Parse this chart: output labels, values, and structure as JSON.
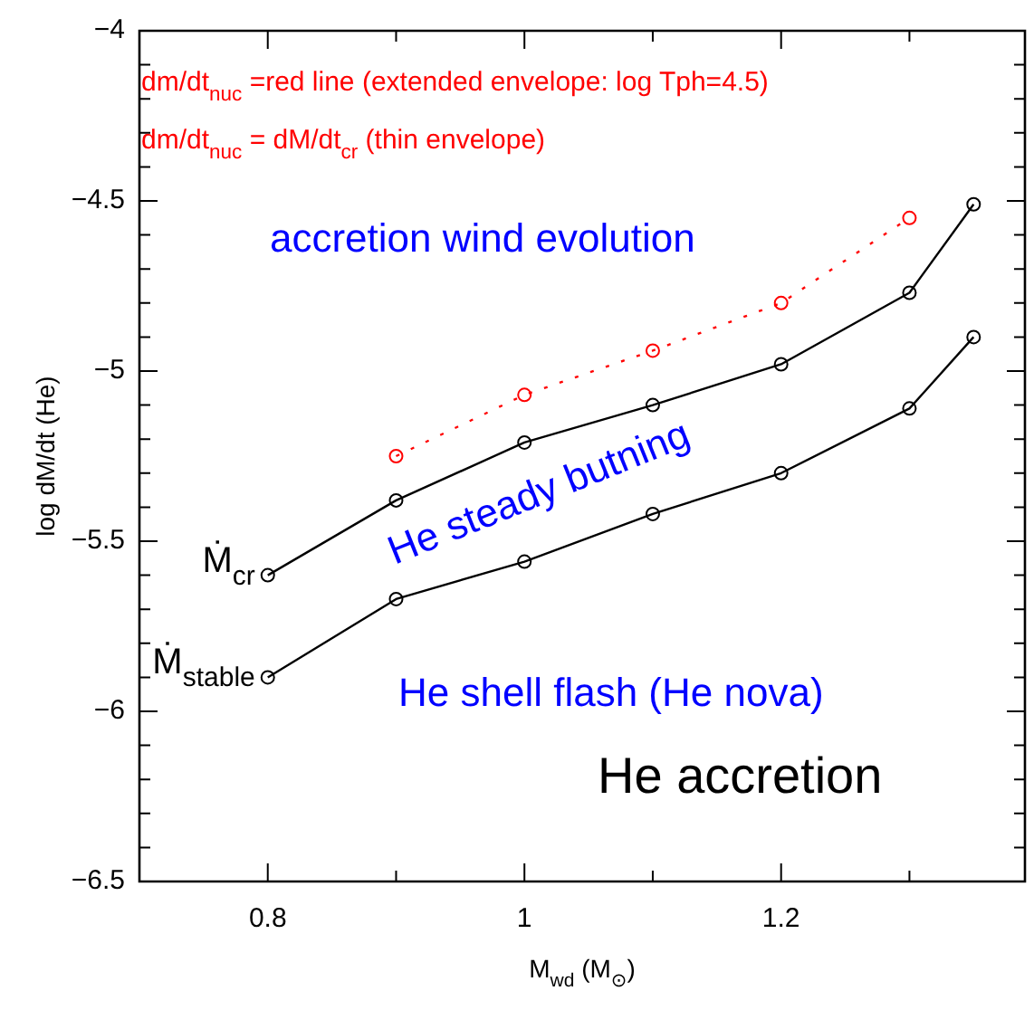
{
  "chart_data": {
    "type": "line",
    "xlabel": "M$_{wd}$ (M$_{⊙}$)",
    "ylabel": "log dM/dt (He)",
    "annotations": [
      "dm/dt$_{nuc}$ =red line (extended envelope: log Tph=4.5)",
      "dm/dt$_{nuc}$ = dM/dt$_{cr}$ (thin envelope)",
      "accretion wind evolution",
      "He steady butning",
      "He shell flash (He nova)",
      "He accretion"
    ],
    "series": [
      {
        "name": "Ṁ$_{cr}$",
        "color": "#000000",
        "x": [
          0.8,
          0.9,
          1.0,
          1.1,
          1.2,
          1.3,
          1.35
        ],
        "values": [
          -5.6,
          -5.38,
          -5.21,
          -5.1,
          -4.98,
          -4.77,
          -4.51
        ]
      },
      {
        "name": "Ṁ$_{stable}$",
        "color": "#000000",
        "x": [
          0.8,
          0.9,
          1.0,
          1.1,
          1.2,
          1.3,
          1.35
        ],
        "values": [
          -5.9,
          -5.67,
          -5.56,
          -5.42,
          -5.3,
          -5.11,
          -4.9
        ]
      },
      {
        "color": "#ff0000",
        "line_style": "dotted",
        "x": [
          0.9,
          1.0,
          1.1,
          1.2,
          1.3
        ],
        "values": [
          -5.25,
          -5.07,
          -4.94,
          -4.8,
          -4.55
        ]
      }
    ],
    "marker": "circle",
    "line_style": "solid",
    "xlim": [
      0.7,
      1.39
    ],
    "xticks": [
      0.8,
      {
        "value": 0.9,
        "label": null
      },
      1,
      {
        "value": 1.1,
        "label": null
      },
      1.2,
      {
        "value": 1.3,
        "label": null
      }
    ],
    "ylim": [
      -6.5,
      -4
    ],
    "yticks": [
      -6.5,
      {
        "value": -6.4,
        "label": null
      },
      {
        "value": -6.3,
        "label": null
      },
      {
        "value": -6.2,
        "label": null
      },
      {
        "value": -6.1,
        "label": null
      },
      -6,
      {
        "value": -5.9,
        "label": null
      },
      {
        "value": -5.8,
        "label": null
      },
      {
        "value": -5.7,
        "label": null
      },
      {
        "value": -5.6,
        "label": null
      },
      -5.5,
      {
        "value": -5.4,
        "label": null
      },
      {
        "value": -5.3,
        "label": null
      },
      {
        "value": -5.2,
        "label": null
      },
      {
        "value": -5.1,
        "label": null
      },
      -5,
      {
        "value": -4.9,
        "label": null
      },
      {
        "value": -4.8,
        "label": null
      },
      {
        "value": -4.7,
        "label": null
      },
      {
        "value": -4.6,
        "label": null
      },
      -4.5,
      {
        "value": -4.4,
        "label": null
      },
      {
        "value": -4.3,
        "label": null
      },
      {
        "value": -4.2,
        "label": null
      },
      {
        "value": -4.1,
        "label": null
      },
      -4
    ]
  }
}
